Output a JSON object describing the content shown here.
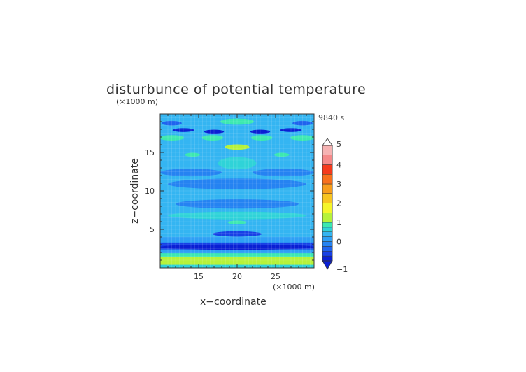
{
  "chart_data": {
    "type": "heatmap",
    "title": "disturbunce of potential temperature",
    "xlabel": "x−coordinate",
    "ylabel": "z−coordinate",
    "x_unit": "(×1000 m)",
    "y_unit": "(×1000 m)",
    "time_label": "9840 s",
    "xlim": [
      10,
      30
    ],
    "ylim": [
      0,
      20
    ],
    "x_ticks": [
      15,
      20,
      25
    ],
    "y_ticks": [
      5,
      10,
      15
    ],
    "grid": true,
    "colorbar": {
      "ticks": [
        -1,
        0,
        1,
        2,
        3,
        4,
        5
      ],
      "levels": [
        {
          "from": -1.0,
          "to": -0.75,
          "color": "#0a1fd4"
        },
        {
          "from": -0.75,
          "to": -0.5,
          "color": "#1740e6"
        },
        {
          "from": -0.5,
          "to": -0.25,
          "color": "#1f63ee"
        },
        {
          "from": -0.25,
          "to": 0.0,
          "color": "#2583f2"
        },
        {
          "from": 0.0,
          "to": 0.25,
          "color": "#2e9ff5"
        },
        {
          "from": 0.25,
          "to": 0.5,
          "color": "#34b5f2"
        },
        {
          "from": 0.5,
          "to": 0.75,
          "color": "#2fd3d8"
        },
        {
          "from": 0.75,
          "to": 1.0,
          "color": "#3ce8b0"
        },
        {
          "from": 1.0,
          "to": 1.5,
          "color": "#b6f23a"
        },
        {
          "from": 1.5,
          "to": 2.0,
          "color": "#f5f52a"
        },
        {
          "from": 2.0,
          "to": 2.5,
          "color": "#f8c420"
        },
        {
          "from": 2.5,
          "to": 3.0,
          "color": "#f89d1c"
        },
        {
          "from": 3.0,
          "to": 3.5,
          "color": "#f8701c"
        },
        {
          "from": 3.5,
          "to": 4.0,
          "color": "#f53a1c"
        },
        {
          "from": 4.0,
          "to": 4.5,
          "color": "#f58a8a"
        },
        {
          "from": 4.5,
          "to": 5.0,
          "color": "#f6b3b3"
        }
      ]
    },
    "background_level": 0.25,
    "bands": [
      {
        "z": [
          0.0,
          0.4
        ],
        "value": 0.6
      },
      {
        "z": [
          0.4,
          1.4
        ],
        "value": 1.4
      },
      {
        "z": [
          1.4,
          1.9
        ],
        "value": 0.8
      },
      {
        "z": [
          1.9,
          2.4
        ],
        "value": 0.1
      },
      {
        "z": [
          2.4,
          3.3
        ],
        "value": -0.6
      },
      {
        "z": [
          3.3,
          4.0
        ],
        "value": 0.0
      }
    ],
    "features": [
      {
        "cx": 20,
        "cz": 2.7,
        "rx": 10,
        "rz": 0.35,
        "value": -0.9
      },
      {
        "cx": 20,
        "cz": 4.4,
        "rx": 3.2,
        "rz": 0.35,
        "value": -0.7
      },
      {
        "cx": 20,
        "cz": 5.9,
        "rx": 1.2,
        "rz": 0.25,
        "value": 0.9
      },
      {
        "cx": 20,
        "cz": 6.8,
        "rx": 9,
        "rz": 0.5,
        "value": 0.5
      },
      {
        "cx": 20,
        "cz": 8.3,
        "rx": 8,
        "rz": 0.6,
        "value": -0.1
      },
      {
        "cx": 20,
        "cz": 10.9,
        "rx": 9,
        "rz": 0.7,
        "value": -0.1
      },
      {
        "cx": 20,
        "cz": 13.6,
        "rx": 2.5,
        "rz": 0.8,
        "value": 0.5
      },
      {
        "cx": 14,
        "cz": 12.4,
        "rx": 4,
        "rz": 0.5,
        "value": -0.1
      },
      {
        "cx": 26,
        "cz": 12.4,
        "rx": 4,
        "rz": 0.5,
        "value": -0.1
      },
      {
        "cx": 20,
        "cz": 15.7,
        "rx": 1.6,
        "rz": 0.35,
        "value": 1.0
      },
      {
        "cx": 14.2,
        "cz": 14.7,
        "rx": 1.0,
        "rz": 0.25,
        "value": 0.9
      },
      {
        "cx": 25.8,
        "cz": 14.7,
        "rx": 1.0,
        "rz": 0.25,
        "value": 0.9
      },
      {
        "cx": 11.5,
        "cz": 16.9,
        "rx": 1.6,
        "rz": 0.35,
        "value": 0.9
      },
      {
        "cx": 16.8,
        "cz": 16.9,
        "rx": 1.4,
        "rz": 0.35,
        "value": 0.9
      },
      {
        "cx": 23.2,
        "cz": 16.9,
        "rx": 1.4,
        "rz": 0.35,
        "value": 0.9
      },
      {
        "cx": 28.5,
        "cz": 16.9,
        "rx": 1.6,
        "rz": 0.35,
        "value": 0.9
      },
      {
        "cx": 13.0,
        "cz": 17.9,
        "rx": 1.4,
        "rz": 0.25,
        "value": -0.8
      },
      {
        "cx": 17.0,
        "cz": 17.7,
        "rx": 1.3,
        "rz": 0.25,
        "value": -0.8
      },
      {
        "cx": 23.0,
        "cz": 17.7,
        "rx": 1.3,
        "rz": 0.25,
        "value": -0.8
      },
      {
        "cx": 27.0,
        "cz": 17.9,
        "rx": 1.4,
        "rz": 0.25,
        "value": -0.8
      },
      {
        "cx": 20,
        "cz": 19.0,
        "rx": 2.2,
        "rz": 0.4,
        "value": 0.9
      },
      {
        "cx": 11.5,
        "cz": 18.8,
        "rx": 1.3,
        "rz": 0.3,
        "value": -0.5
      },
      {
        "cx": 28.5,
        "cz": 18.8,
        "rx": 1.3,
        "rz": 0.3,
        "value": -0.5
      }
    ]
  }
}
